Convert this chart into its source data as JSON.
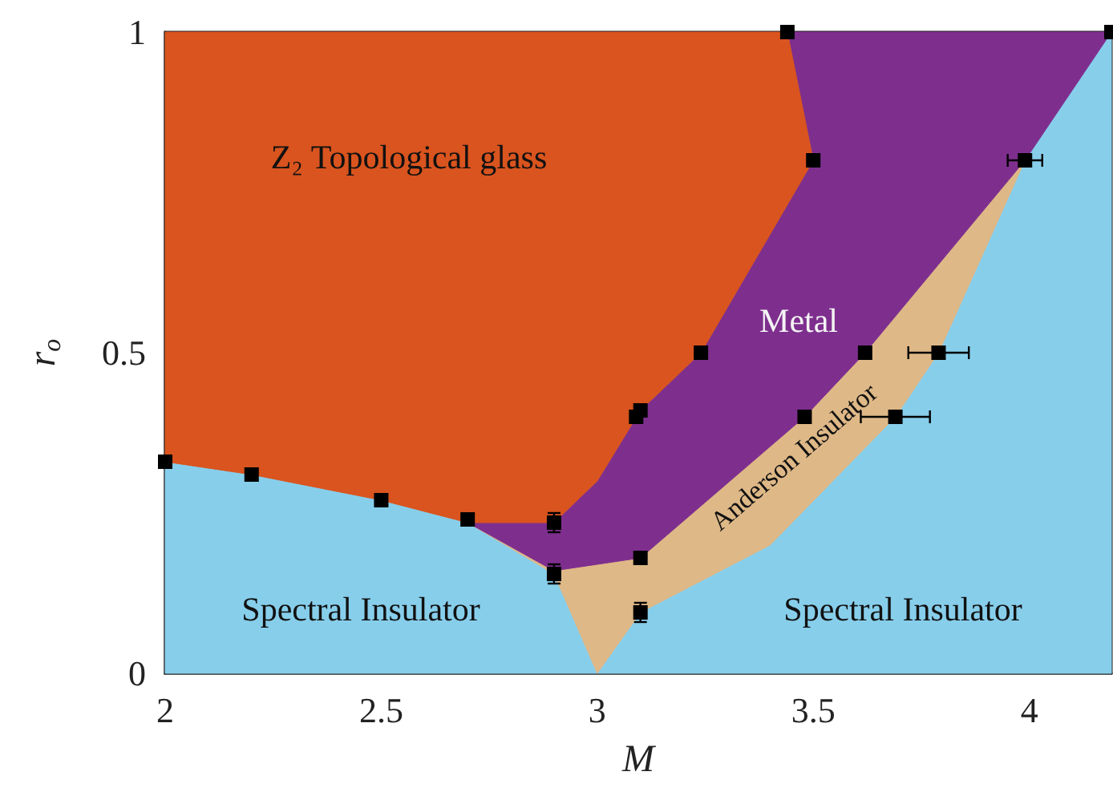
{
  "chart_data": {
    "type": "area",
    "xlabel": "M",
    "ylabel": "r$_{o}$",
    "xlim": [
      2,
      4.19
    ],
    "ylim": [
      0,
      1
    ],
    "xticks": [
      2,
      2.5,
      3,
      3.5,
      4
    ],
    "yticks": [
      0,
      0.5,
      1
    ],
    "grid": false,
    "series": [
      {
        "color": "#87ceeb",
        "x": [
          2,
          2,
          2.2,
          2.5,
          2.7,
          2.9,
          3.0,
          3.1,
          3.4,
          3.69,
          3.79,
          3.99,
          4.19,
          4.19
        ],
        "values": [
          0,
          0.33,
          0.31,
          0.27,
          0.235,
          0.155,
          0,
          0.095,
          0.2,
          0.4,
          0.5,
          0.8,
          1,
          0
        ]
      },
      {
        "color": "#deb887",
        "x": [
          2.7,
          2.9,
          3.1,
          3.48,
          3.62,
          3.99,
          3.79,
          3.69,
          3.4,
          3.1,
          3.0,
          2.9
        ],
        "values": [
          0.235,
          0.16,
          0.18,
          0.4,
          0.5,
          0.8,
          0.5,
          0.4,
          0.2,
          0.095,
          0,
          0.155
        ]
      },
      {
        "color": "#7e2f8e",
        "x": [
          2.7,
          2.9,
          3.0,
          3.1,
          3.24,
          3.5,
          3.44,
          4.19,
          3.99,
          3.62,
          3.48,
          3.1,
          2.9
        ],
        "values": [
          0.235,
          0.235,
          0.3,
          0.41,
          0.5,
          0.8,
          1,
          1,
          0.8,
          0.5,
          0.4,
          0.18,
          0.16
        ]
      },
      {
        "color": "#d9541e",
        "x": [
          2,
          3.44,
          3.5,
          3.24,
          3.1,
          3.0,
          2.9,
          2.7,
          2.5,
          2.2,
          2
        ],
        "values": [
          1,
          1,
          0.8,
          0.5,
          0.41,
          0.3,
          0.235,
          0.235,
          0.27,
          0.31,
          0.33
        ]
      },
      {
        "type": "scatter",
        "color": "#000000",
        "marker": "square",
        "x": [
          2,
          2.2,
          2.5,
          2.7,
          2.9,
          2.9,
          3.1,
          3.1,
          3.09,
          3.1,
          3.24,
          3.44,
          3.5,
          3.48,
          3.62,
          3.69,
          3.79,
          3.99,
          4.19
        ],
        "values": [
          0.33,
          0.31,
          0.27,
          0.24,
          0.235,
          0.155,
          0.095,
          0.18,
          0.4,
          0.41,
          0.5,
          1,
          0.8,
          0.4,
          0.5,
          0.4,
          0.5,
          0.8,
          1
        ],
        "errors": [
          null,
          null,
          null,
          null,
          0.015,
          0.015,
          0.015,
          null,
          null,
          null,
          null,
          null,
          null,
          null,
          null,
          null,
          null,
          null,
          null
        ],
        "xerrors": [
          null,
          null,
          null,
          null,
          null,
          null,
          null,
          null,
          null,
          null,
          null,
          null,
          null,
          null,
          null,
          0.08,
          0.07,
          0.04,
          null
        ]
      }
    ],
    "annotations": [
      "Z₂ Topological glass",
      "Metal",
      "Anderson Insulator",
      "Spectral Insulator",
      "Spectral Insulator"
    ]
  }
}
